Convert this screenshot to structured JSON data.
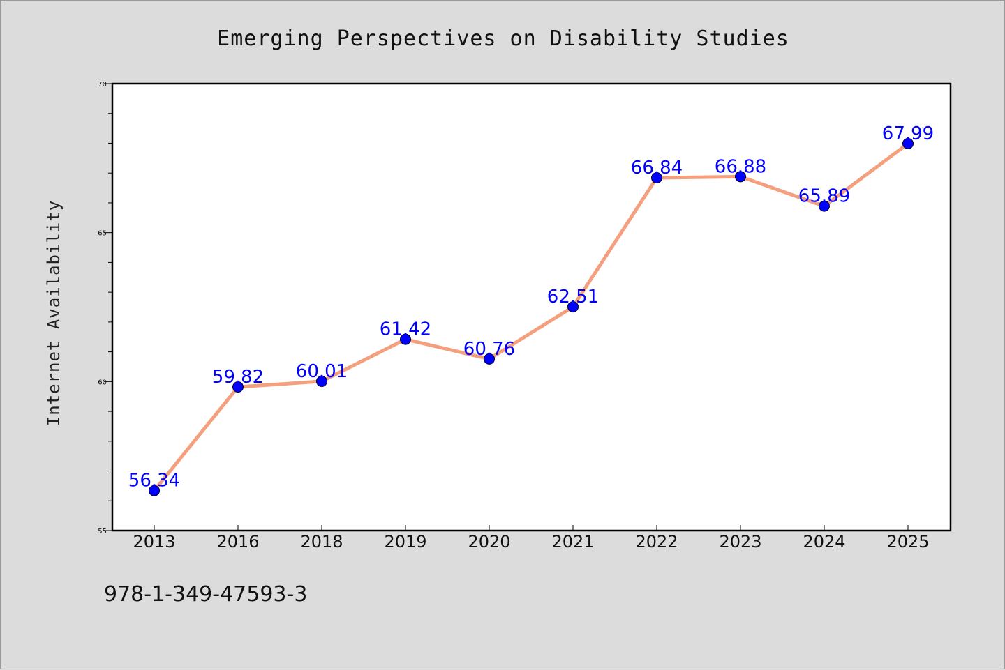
{
  "chart_data": {
    "type": "line",
    "title": "Emerging Perspectives on Disability Studies",
    "xlabel": "",
    "ylabel": "Internet Availability",
    "categories": [
      "2013",
      "2016",
      "2018",
      "2019",
      "2020",
      "2021",
      "2022",
      "2023",
      "2024",
      "2025"
    ],
    "series": [
      {
        "values": [
          56.34,
          59.82,
          60.01,
          61.42,
          60.76,
          62.51,
          66.84,
          66.88,
          65.89,
          67.99
        ],
        "labels": [
          "56.34",
          "59.82",
          "60.01",
          "61.42",
          "60.76",
          "62.51",
          "66.84",
          "66.88",
          "65.89",
          "67.99"
        ],
        "line_color": "#f4a07e",
        "marker_color": "#0000ff"
      }
    ],
    "ylim": [
      55,
      70
    ],
    "yticks": [
      "55",
      "60",
      "65",
      "70"
    ],
    "grid": false,
    "legend": "none"
  },
  "footer": {
    "isbn": "978-1-349-47593-3"
  }
}
